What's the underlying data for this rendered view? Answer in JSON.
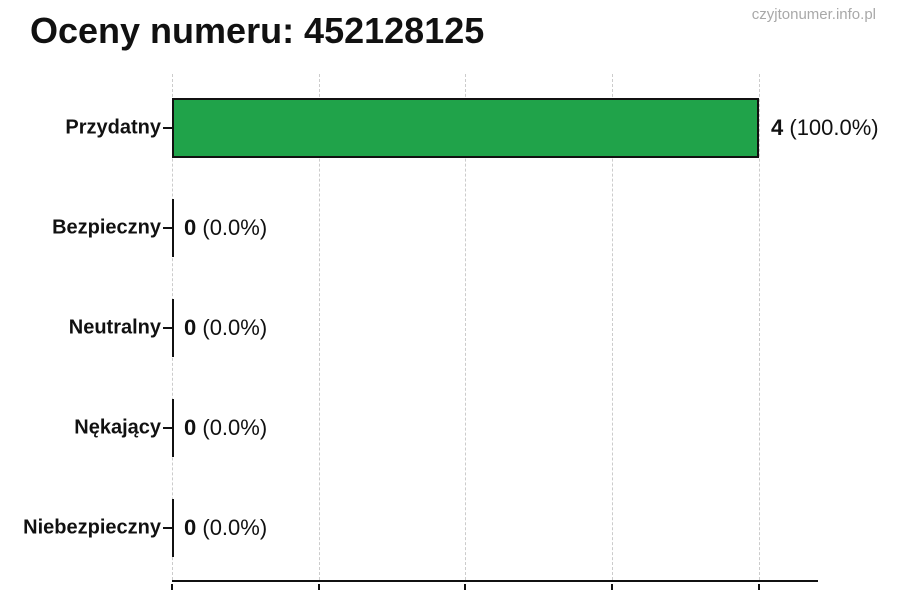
{
  "page": {
    "title": "Oceny numeru: 452128125",
    "watermark": "czyjtonumer.info.pl"
  },
  "colors": {
    "bar_fill": "#20a34a",
    "bar_border": "#111111",
    "grid": "#cccccc",
    "axis": "#111111",
    "watermark": "#a9a9a9",
    "text": "#000000"
  },
  "chart_data": {
    "type": "bar",
    "orientation": "horizontal",
    "title": "Oceny numeru: 452128125",
    "categories": [
      "Przydatny",
      "Bezpieczny",
      "Neutralny",
      "Nękający",
      "Niebezpieczny"
    ],
    "values": [
      4,
      0,
      0,
      0,
      0
    ],
    "percentages": [
      100.0,
      0.0,
      0.0,
      0.0,
      0.0
    ],
    "value_labels": [
      "4 (100.0%)",
      "0 (0.0%)",
      "0 (0.0%)",
      "0 (0.0%)",
      "0 (0.0%)"
    ],
    "count_labels": [
      "4",
      "0",
      "0",
      "0",
      "0"
    ],
    "pct_labels": [
      "(100.0%)",
      "(0.0%)",
      "(0.0%)",
      "(0.0%)",
      "(0.0%)"
    ],
    "xlabel": "",
    "ylabel": "",
    "xlim": [
      0,
      4
    ],
    "x_ticks": [
      0,
      1,
      2,
      3,
      4
    ],
    "x_tick_labels_shown": false,
    "grid": "vertical-dashed",
    "legend": "none"
  }
}
